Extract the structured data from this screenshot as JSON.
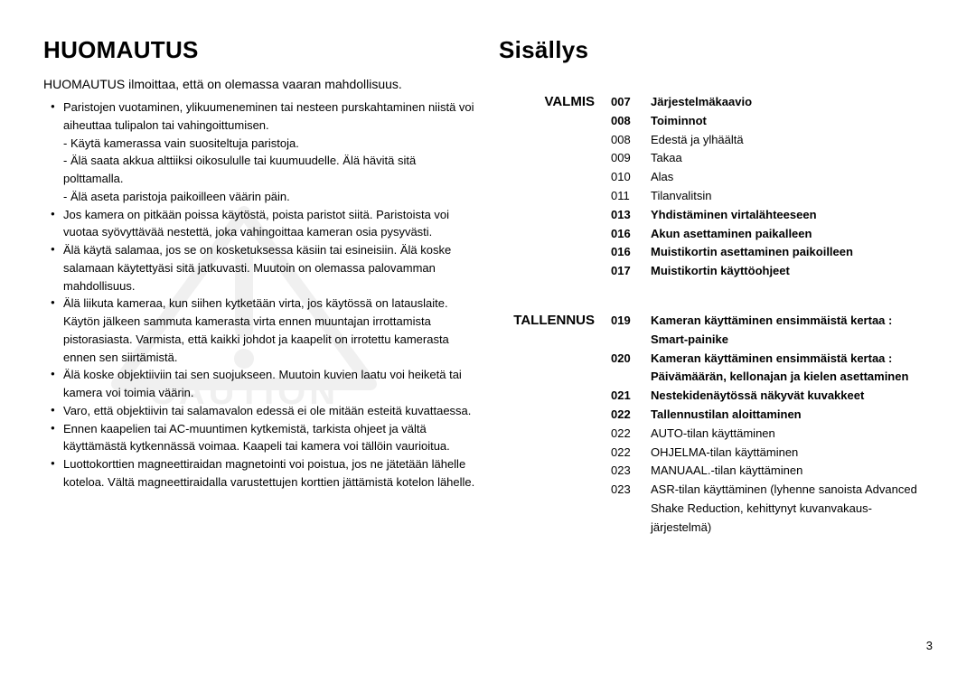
{
  "left": {
    "heading": "HUOMAUTUS",
    "intro": "HUOMAUTUS ilmoittaa, että on olemassa vaaran mahdollisuus.",
    "bullets": [
      {
        "text": "Paristojen vuotaminen, ylikuumeneminen tai nesteen purskahtaminen niistä voi aiheuttaa tulipalon tai vahingoittumisen.",
        "subs": [
          "- Käytä kamerassa vain suositeltuja paristoja.",
          "- Älä saata akkua alttiiksi oikosululle tai kuumuudelle. Älä hävitä sitä polttamalla.",
          "- Älä aseta paristoja paikoilleen väärin päin."
        ]
      },
      {
        "text": "Jos kamera on pitkään poissa käytöstä, poista paristot siitä. Paristoista voi vuotaa syövyttävää nestettä, joka vahingoittaa kameran osia pysyvästi.",
        "subs": []
      },
      {
        "text": "Älä käytä salamaa, jos se on kosketuksessa käsiin tai esineisiin. Älä koske salamaan käytettyäsi sitä jatkuvasti. Muutoin on olemassa palovamman mahdollisuus.",
        "subs": []
      },
      {
        "text": "Älä liikuta kameraa, kun siihen kytketään virta, jos käytössä on latauslaite. Käytön jälkeen sammuta kamerasta virta ennen muuntajan irrottamista pistorasiasta. Varmista, että kaikki johdot ja kaapelit on irrotettu kamerasta ennen sen siirtämistä.",
        "subs": []
      },
      {
        "text": "Älä koske objektiiviin tai sen suojukseen. Muutoin kuvien laatu voi heiketä tai kamera voi toimia väärin.",
        "subs": []
      },
      {
        "text": "Varo, että objektiivin tai salamavalon edessä ei ole mitään esteitä kuvattaessa.",
        "subs": []
      },
      {
        "text": "Ennen kaapelien tai AC-muuntimen kytkemistä, tarkista ohjeet ja vältä käyttämästä kytkennässä voimaa. Kaapeli tai kamera voi tällöin vaurioitua.",
        "subs": []
      },
      {
        "text": "Luottokorttien magneettiraidan magnetointi voi poistua, jos ne jätetään lähelle koteloa. Vältä magneettiraidalla varustettujen korttien jättämistä kotelon lähelle.",
        "subs": []
      }
    ]
  },
  "right": {
    "heading": "Sisällys",
    "sections": [
      {
        "label": "VALMIS",
        "items": [
          {
            "page": "007",
            "title": "Järjestelmäkaavio",
            "bold": true
          },
          {
            "page": "008",
            "title": "Toiminnot",
            "bold": true
          },
          {
            "page": "008",
            "title": "Edestä ja ylhäältä",
            "bold": false
          },
          {
            "page": "009",
            "title": "Takaa",
            "bold": false
          },
          {
            "page": "010",
            "title": "Alas",
            "bold": false
          },
          {
            "page": "011",
            "title": "Tilanvalitsin",
            "bold": false
          },
          {
            "page": "013",
            "title": "Yhdistäminen virtalähteeseen",
            "bold": true
          },
          {
            "page": "016",
            "title": "Akun asettaminen paikalleen",
            "bold": true
          },
          {
            "page": "016",
            "title": "Muistikortin asettaminen paikoilleen",
            "bold": true
          },
          {
            "page": "017",
            "title": "Muistikortin käyttöohjeet",
            "bold": true
          }
        ]
      },
      {
        "label": "TALLENNUS",
        "items": [
          {
            "page": "019",
            "title": "Kameran käyttäminen ensimmäistä kertaa : Smart-painike",
            "bold": true
          },
          {
            "page": "020",
            "title": "Kameran käyttäminen ensimmäistä kertaa : Päivämäärän, kellonajan ja kielen asettaminen",
            "bold": true
          },
          {
            "page": "021",
            "title": "Nestekidenäytössä näkyvät kuvakkeet",
            "bold": true
          },
          {
            "page": "022",
            "title": "Tallennustilan aloittaminen",
            "bold": true
          },
          {
            "page": "022",
            "title": "AUTO-tilan käyttäminen",
            "bold": false
          },
          {
            "page": "022",
            "title": "OHJELMA-tilan käyttäminen",
            "bold": false
          },
          {
            "page": "023",
            "title": "MANUAAL.-tilan käyttäminen",
            "bold": false
          },
          {
            "page": "023",
            "title": "ASR-tilan käyttäminen (lyhenne sanoista Advanced Shake Reduction, kehittynyt kuvanvakaus-järjestelmä)",
            "bold": false
          }
        ]
      }
    ]
  },
  "watermark_text": "CAUTION",
  "page_number": "3",
  "colors": {
    "text": "#000000",
    "background": "#ffffff",
    "watermark": "#c9c9c9"
  }
}
